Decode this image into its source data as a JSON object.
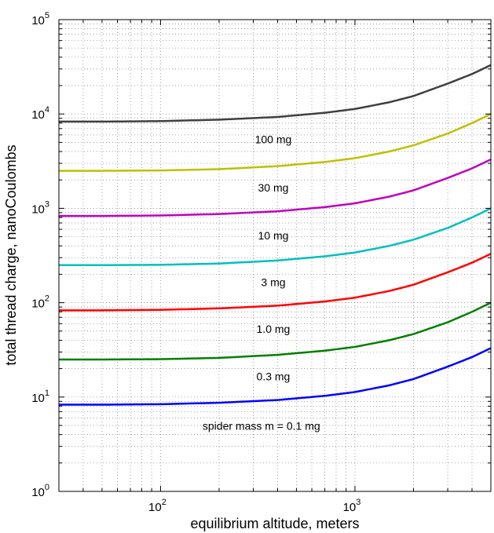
{
  "chart_data": {
    "type": "line",
    "xlabel": "equilibrium altitude, meters",
    "ylabel": "total thread charge, nanoCoulombs",
    "xscale": "log",
    "yscale": "log",
    "xlim": [
      30,
      5000
    ],
    "ylim": [
      1,
      100000
    ],
    "grid": true,
    "x_ticks": [
      {
        "value": 100,
        "base": "10",
        "exp": "2"
      },
      {
        "value": 1000,
        "base": "10",
        "exp": "3"
      }
    ],
    "y_ticks": [
      {
        "value": 1,
        "base": "10",
        "exp": "0"
      },
      {
        "value": 10,
        "base": "10",
        "exp": "1"
      },
      {
        "value": 100,
        "base": "10",
        "exp": "2"
      },
      {
        "value": 1000,
        "base": "10",
        "exp": "3"
      },
      {
        "value": 10000,
        "base": "10",
        "exp": "4"
      },
      {
        "value": 100000,
        "base": "10",
        "exp": "5"
      }
    ],
    "x": [
      30,
      50,
      100,
      200,
      400,
      700,
      1000,
      1500,
      2000,
      3000,
      4000,
      5000
    ],
    "series": [
      {
        "label": "spider mass m = 0.1 mg",
        "mass_mg": 0.1,
        "color": "#0000ff",
        "values": [
          8.3,
          8.3,
          8.4,
          8.7,
          9.3,
          10.3,
          11.3,
          13.3,
          15.5,
          21,
          26.5,
          33
        ]
      },
      {
        "label": "0.3 mg",
        "mass_mg": 0.3,
        "color": "#007f00",
        "values": [
          25,
          25,
          25.2,
          26,
          28,
          31,
          34,
          40,
          46.5,
          62,
          80,
          100
        ]
      },
      {
        "label": "1.0 mg",
        "mass_mg": 1.0,
        "color": "#ff0000",
        "values": [
          83,
          83,
          84,
          87,
          93,
          103,
          113,
          133,
          155,
          210,
          265,
          330
        ]
      },
      {
        "label": "3 mg",
        "mass_mg": 3,
        "color": "#00bfbf",
        "values": [
          250,
          250,
          252,
          260,
          280,
          310,
          340,
          400,
          465,
          620,
          800,
          1000
        ]
      },
      {
        "label": "10 mg",
        "mass_mg": 10,
        "color": "#bf00bf",
        "values": [
          830,
          830,
          840,
          870,
          930,
          1030,
          1130,
          1330,
          1550,
          2100,
          2650,
          3300
        ]
      },
      {
        "label": "30 mg",
        "mass_mg": 30,
        "color": "#bfbf00",
        "values": [
          2500,
          2500,
          2520,
          2600,
          2800,
          3100,
          3400,
          4000,
          4650,
          6200,
          8000,
          10000
        ]
      },
      {
        "label": "100 mg",
        "mass_mg": 100,
        "color": "#404040",
        "values": [
          8300,
          8300,
          8400,
          8700,
          9300,
          10300,
          11300,
          13300,
          15500,
          21000,
          26500,
          33000
        ]
      }
    ],
    "annotations": [
      {
        "text": "spider mass m = 0.1 mg",
        "x": 330,
        "y": 4.5
      },
      {
        "text": "0.3 mg",
        "x": 380,
        "y": 15
      },
      {
        "text": "1.0 mg",
        "x": 380,
        "y": 48
      },
      {
        "text": "3 mg",
        "x": 380,
        "y": 150
      },
      {
        "text": "10 mg",
        "x": 380,
        "y": 470
      },
      {
        "text": "30 mg",
        "x": 380,
        "y": 1500
      },
      {
        "text": "100 mg",
        "x": 380,
        "y": 4900
      }
    ]
  }
}
